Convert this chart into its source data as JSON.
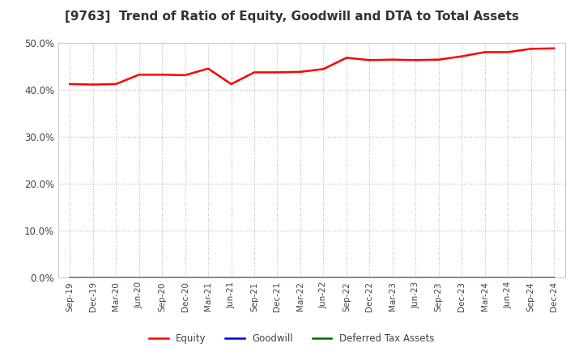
{
  "title": "[9763]  Trend of Ratio of Equity, Goodwill and DTA to Total Assets",
  "x_labels": [
    "Sep-19",
    "Dec-19",
    "Mar-20",
    "Jun-20",
    "Sep-20",
    "Dec-20",
    "Mar-21",
    "Jun-21",
    "Sep-21",
    "Dec-21",
    "Mar-22",
    "Jun-22",
    "Sep-22",
    "Dec-22",
    "Mar-23",
    "Jun-23",
    "Sep-23",
    "Dec-23",
    "Mar-24",
    "Jun-24",
    "Sep-24",
    "Dec-24"
  ],
  "equity": [
    0.412,
    0.411,
    0.412,
    0.432,
    0.432,
    0.431,
    0.445,
    0.412,
    0.437,
    0.437,
    0.438,
    0.444,
    0.468,
    0.463,
    0.464,
    0.463,
    0.464,
    0.471,
    0.48,
    0.48,
    0.487,
    0.488
  ],
  "goodwill": [
    0.0,
    0.0,
    0.0,
    0.0,
    0.0,
    0.0,
    0.0,
    0.0,
    0.0,
    0.0,
    0.0,
    0.0,
    0.0,
    0.0,
    0.0,
    0.0,
    0.0,
    0.0,
    0.0,
    0.0,
    0.0,
    0.0
  ],
  "dta": [
    0.0,
    0.0,
    0.0,
    0.0,
    0.0,
    0.0,
    0.0,
    0.0,
    0.0,
    0.0,
    0.0,
    0.0,
    0.0,
    0.0,
    0.0,
    0.0,
    0.0,
    0.0,
    0.0,
    0.0,
    0.0,
    0.0
  ],
  "equity_color": "#ff0000",
  "goodwill_color": "#0000cc",
  "dta_color": "#006600",
  "ylim": [
    0.0,
    0.5
  ],
  "yticks": [
    0.0,
    0.1,
    0.2,
    0.3,
    0.4,
    0.5
  ],
  "bg_color": "#ffffff",
  "plot_bg_color": "#ffffff",
  "grid_color": "#bbbbbb",
  "title_fontsize": 11,
  "title_color": "#333333",
  "tick_color": "#444444",
  "legend_labels": [
    "Equity",
    "Goodwill",
    "Deferred Tax Assets"
  ]
}
